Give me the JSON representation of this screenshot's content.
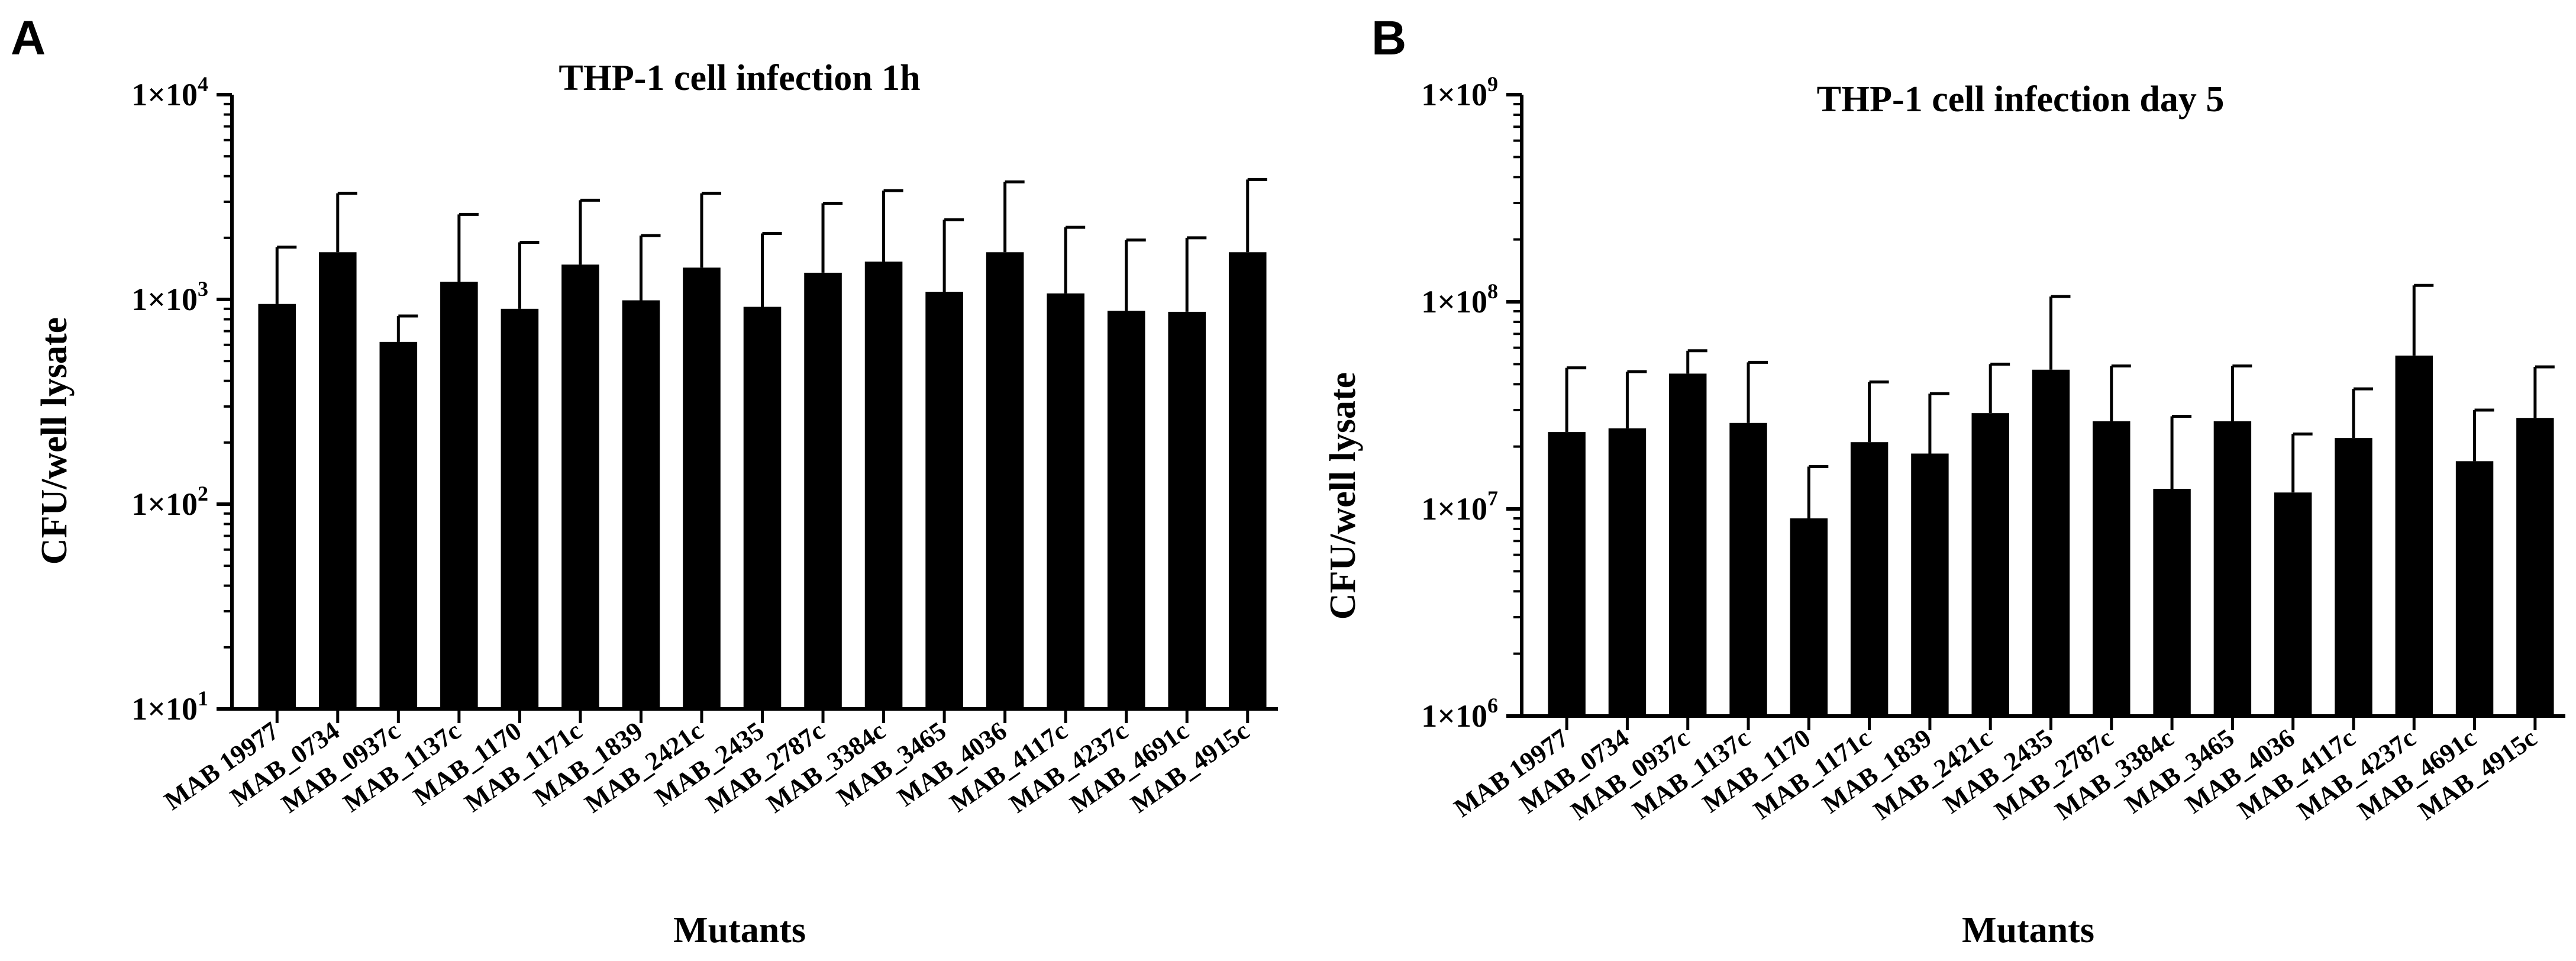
{
  "panels": [
    {
      "letter": "A"
    },
    {
      "letter": "B"
    }
  ],
  "chart_data": [
    {
      "type": "bar",
      "title": "THP-1 cell infection 1h",
      "xlabel": "Mutants",
      "ylabel": "CFU/well lysate",
      "yscale": "log",
      "ylim": [
        10,
        10000
      ],
      "yticks": [
        {
          "base": "1×10",
          "exp": "1"
        },
        {
          "base": "1×10",
          "exp": "2"
        },
        {
          "base": "1×10",
          "exp": "3"
        },
        {
          "base": "1×10",
          "exp": "4"
        }
      ],
      "categories": [
        "MAB 19977",
        "MAB_0734",
        "MAB_0937c",
        "MAB_1137c",
        "MAB_1170",
        "MAB_1171c",
        "MAB_1839",
        "MAB_2421c",
        "MAB_2435",
        "MAB_2787c",
        "MAB_3384c",
        "MAB_3465",
        "MAB_4036",
        "MAB_4117c",
        "MAB_4237c",
        "MAB_4691c",
        "MAB_4915c"
      ],
      "values": [
        950,
        1700,
        620,
        1220,
        900,
        1480,
        990,
        1430,
        920,
        1350,
        1530,
        1090,
        1700,
        1070,
        880,
        870,
        1700
      ],
      "errors_upper": [
        1800,
        3300,
        830,
        2600,
        1900,
        3050,
        2050,
        3300,
        2100,
        2950,
        3400,
        2450,
        3750,
        2250,
        1950,
        2000,
        3850
      ]
    },
    {
      "type": "bar",
      "title": "THP-1 cell infection day 5",
      "xlabel": "Mutants",
      "ylabel": "CFU/well lysate",
      "yscale": "log",
      "ylim": [
        1000000,
        1000000000
      ],
      "yticks": [
        {
          "base": "1×10",
          "exp": "6"
        },
        {
          "base": "1×10",
          "exp": "7"
        },
        {
          "base": "1×10",
          "exp": "8"
        },
        {
          "base": "1×10",
          "exp": "9"
        }
      ],
      "categories": [
        "MAB 19977",
        "MAB_0734",
        "MAB_0937c",
        "MAB_1137c",
        "MAB_1170",
        "MAB_1171c",
        "MAB_1839",
        "MAB_2421c",
        "MAB_2435",
        "MAB_2787c",
        "MAB_3384c",
        "MAB_3465",
        "MAB_4036",
        "MAB_4117c",
        "MAB_4237c",
        "MAB_4691c",
        "MAB_4915c"
      ],
      "values": [
        23500000,
        24500000,
        45000000,
        26000000,
        9000000,
        21000000,
        18500000,
        29000000,
        47000000,
        26500000,
        12500000,
        26500000,
        12000000,
        22000000,
        55000000,
        17000000,
        27500000
      ],
      "errors_upper": [
        48000000,
        46000000,
        58000000,
        51000000,
        16000000,
        41000000,
        36000000,
        50000000,
        106000000,
        49000000,
        28000000,
        49000000,
        23000000,
        38000000,
        120000000,
        30000000,
        48500000
      ]
    }
  ]
}
